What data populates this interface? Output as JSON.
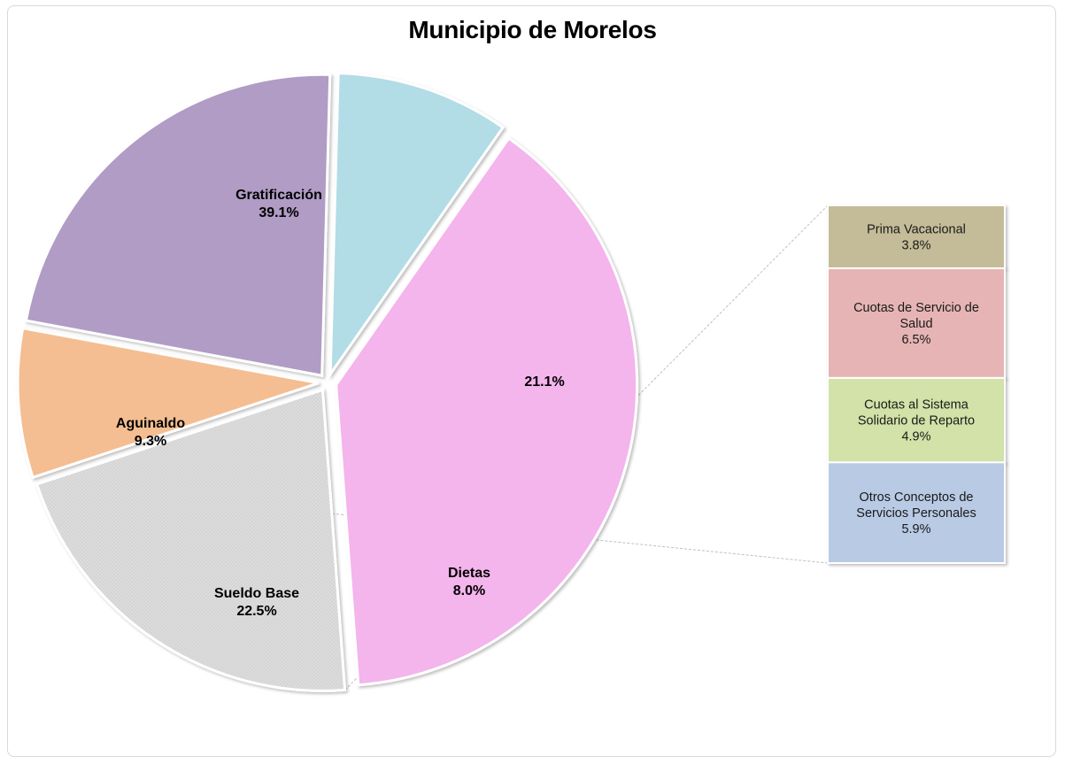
{
  "chart_data": {
    "type": "pie",
    "title": "Municipio de Morelos",
    "main_slices": [
      {
        "label": "Gratificación",
        "value": 39.1,
        "display": "39.1%",
        "color": "#f4b4ec"
      },
      {
        "label": "",
        "value": 21.1,
        "display": "21.1%",
        "color": "#d9d9d9"
      },
      {
        "label": "Dietas",
        "value": 8.0,
        "display": "8.0%",
        "color": "#f4be92"
      },
      {
        "label": "Sueldo Base",
        "value": 22.5,
        "display": "22.5%",
        "color": "#b09cc5"
      },
      {
        "label": "Aguinaldo",
        "value": 9.3,
        "display": "9.3%",
        "color": "#b2dce6"
      }
    ],
    "breakdown_of": "21.1%",
    "breakdown": [
      {
        "label": "Prima Vacacional",
        "value": 3.8,
        "display": "3.8%",
        "color": "#c4bc98"
      },
      {
        "label": "Cuotas de Servicio de Salud",
        "value": 6.5,
        "display": "6.5%",
        "color": "#e6b4b4"
      },
      {
        "label": "Cuotas al Sistema Solidario de Reparto",
        "value": 4.9,
        "display": "4.9%",
        "color": "#d2e2a8"
      },
      {
        "label": "Otros Conceptos de Servicios Personales",
        "value": 5.9,
        "display": "5.9%",
        "color": "#b8cae4"
      }
    ]
  }
}
